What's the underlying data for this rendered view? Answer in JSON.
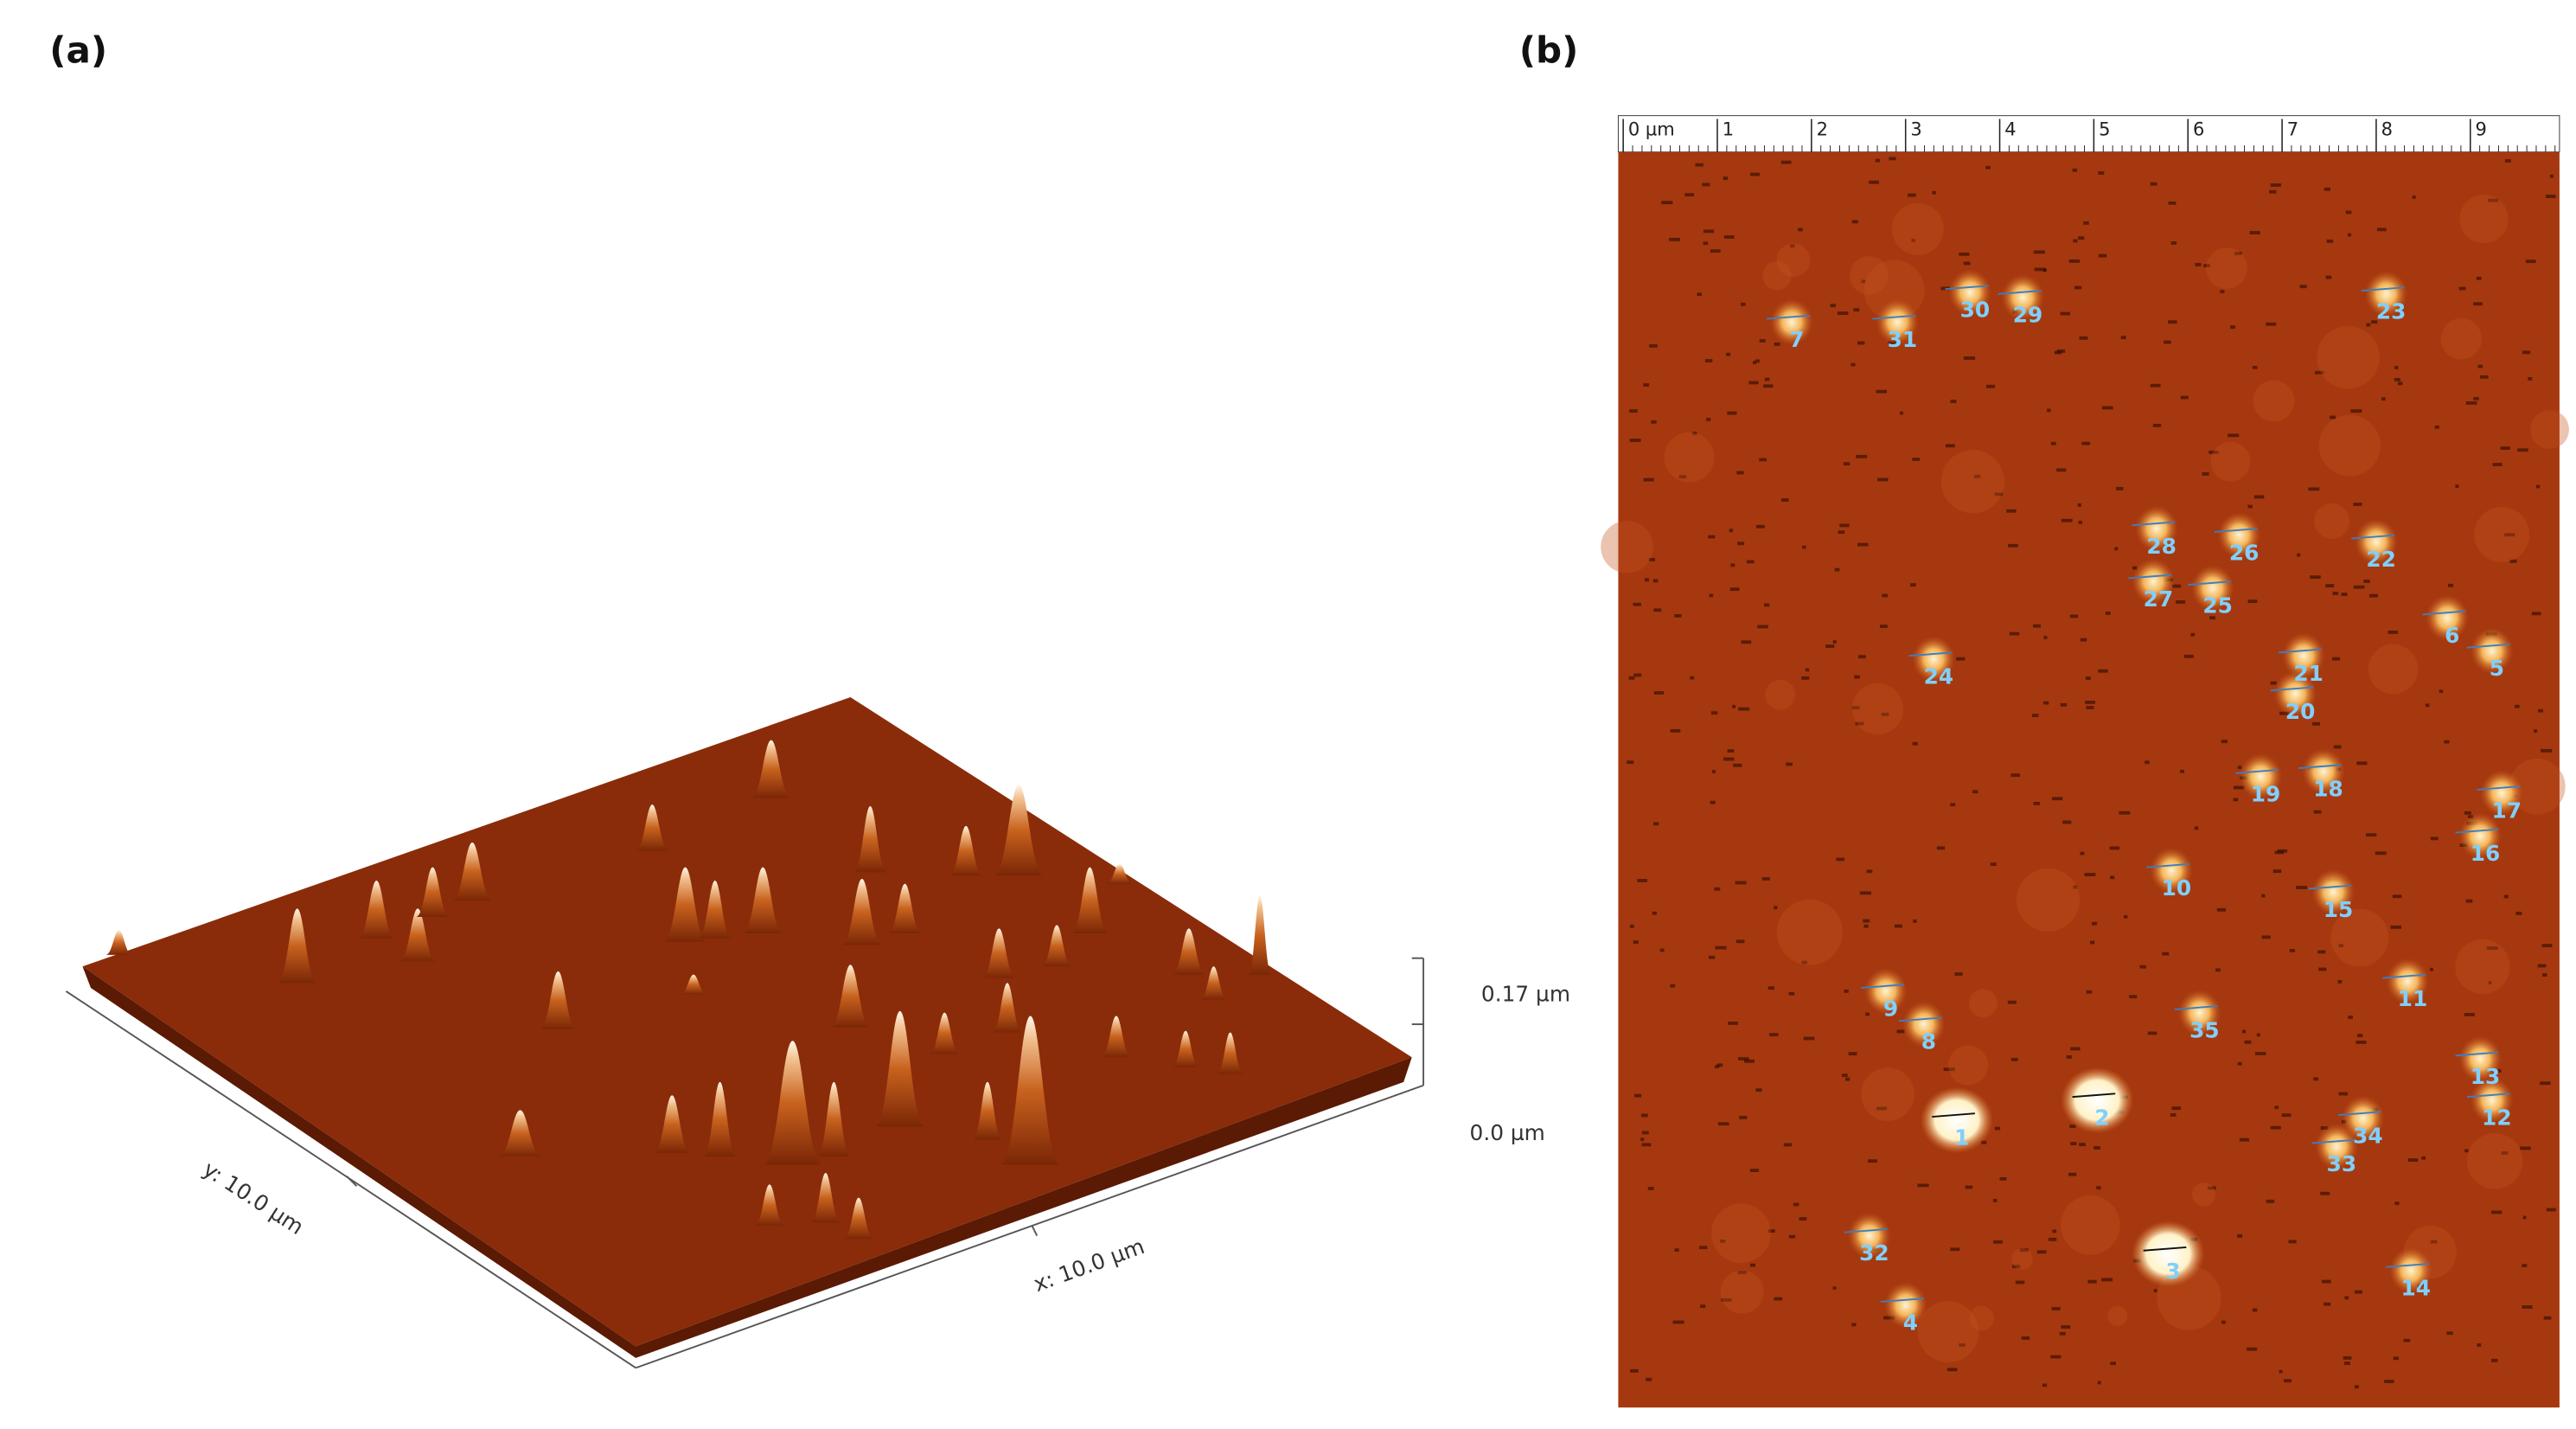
{
  "panels": [
    {
      "label": "(a)",
      "axis_labels": {
        "y": "y: 10.0 µm",
        "x": "x: 10.0 µm"
      },
      "z_labels": [
        "0.17 µm",
        "0.0 µm"
      ]
    },
    {
      "label": "(b)",
      "ruler_labels": [
        "0 µm",
        "1",
        "2",
        "3",
        "4",
        "5",
        "6",
        "7",
        "8",
        "9"
      ],
      "particle_labels": [
        "1",
        "2",
        "3",
        "4",
        "5",
        "6",
        "7",
        "8",
        "9",
        "10",
        "11",
        "12",
        "13",
        "14",
        "15",
        "16",
        "17",
        "18",
        "19",
        "20",
        "21",
        "22",
        "23",
        "24",
        "25",
        "26",
        "27",
        "28",
        "29",
        "30",
        "31",
        "32",
        "33",
        "34",
        "35"
      ]
    }
  ]
}
